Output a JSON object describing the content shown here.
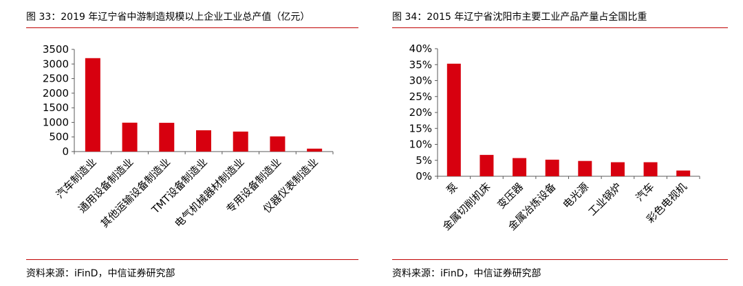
{
  "figures": [
    {
      "title": "图 33：2019 年辽宁省中游制造规模以上企业工业总产值（亿元）",
      "source": "资料来源：iFinD，中信证券研究部"
    },
    {
      "title": "图 34：2015 年辽宁省沈阳市主要工业产品产量占全国比重",
      "source": "资料来源：iFinD，中信证券研究部"
    }
  ],
  "colors": {
    "bar": "#d7000f",
    "rule": "#c00000",
    "axis": "#595959"
  },
  "chart_data": [
    {
      "type": "bar",
      "title": "",
      "xlabel": "",
      "ylabel": "",
      "categories": [
        "汽车制造业",
        "通用设备制造业",
        "其他运输设备制造业",
        "TMT设备制造业",
        "电气机械器材制造业",
        "专用设备制造业",
        "仪器仪表制造业"
      ],
      "values": [
        3200,
        990,
        985,
        730,
        685,
        520,
        100
      ],
      "ylim": [
        0,
        3500
      ],
      "yticks": [
        "0",
        "500",
        "1000",
        "1500",
        "2000",
        "2500",
        "3000",
        "3500"
      ],
      "grid": false,
      "legend": "none"
    },
    {
      "type": "bar",
      "title": "",
      "xlabel": "",
      "ylabel": "",
      "categories": [
        "泵",
        "金属切削机床",
        "变压器",
        "金属冶炼设备",
        "电光源",
        "工业锅炉",
        "汽车",
        "彩色电视机"
      ],
      "values": [
        35.3,
        6.7,
        5.7,
        5.2,
        4.8,
        4.4,
        4.4,
        1.8
      ],
      "ylim": [
        0,
        40
      ],
      "yticks": [
        "0%",
        "5%",
        "10%",
        "15%",
        "20%",
        "25%",
        "30%",
        "35%",
        "40%"
      ],
      "grid": false,
      "legend": "none"
    }
  ]
}
